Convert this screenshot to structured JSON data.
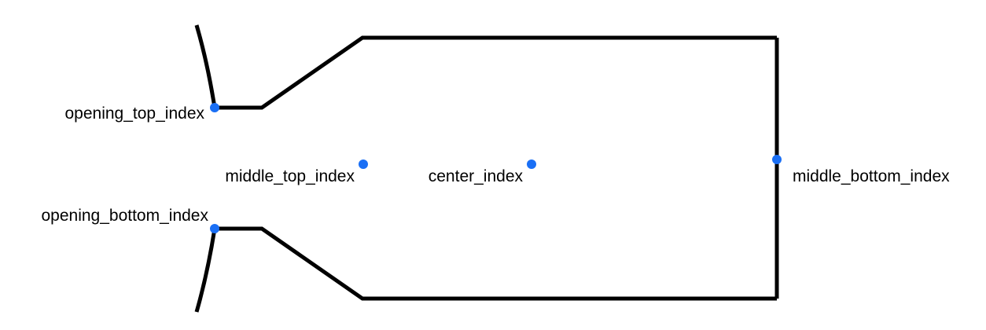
{
  "diagram": {
    "point_color": "#1a6ff5",
    "line_color": "#000000",
    "points": {
      "opening_top": {
        "label": "opening_top_index"
      },
      "middle_top": {
        "label": "middle_top_index"
      },
      "center": {
        "label": "center_index"
      },
      "middle_bottom": {
        "label": "middle_bottom_index"
      },
      "opening_bottom": {
        "label": "opening_bottom_index"
      }
    }
  }
}
